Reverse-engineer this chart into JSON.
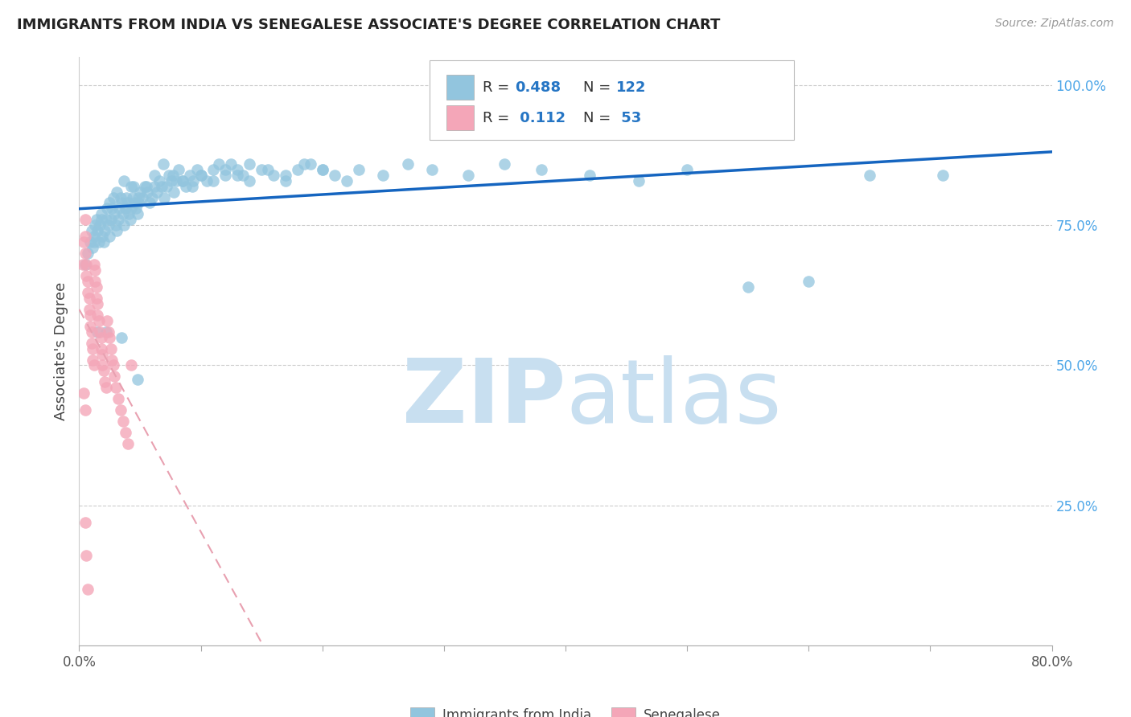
{
  "title": "IMMIGRANTS FROM INDIA VS SENEGALESE ASSOCIATE'S DEGREE CORRELATION CHART",
  "source": "Source: ZipAtlas.com",
  "ylabel": "Associate's Degree",
  "legend_label1": "Immigrants from India",
  "legend_label2": "Senegalese",
  "color_blue": "#92c5de",
  "color_pink": "#f4a6b8",
  "trendline_blue": "#1565C0",
  "trendline_pink": "#e8a0b0",
  "watermark_zip": "ZIP",
  "watermark_atlas": "atlas",
  "watermark_color_zip": "#c8dff0",
  "watermark_color_atlas": "#c8dff0",
  "xlim": [
    0.0,
    0.8
  ],
  "ylim": [
    0.0,
    1.05
  ],
  "figsize": [
    14.06,
    8.92
  ],
  "dpi": 100,
  "blue_x": [
    0.005,
    0.007,
    0.009,
    0.01,
    0.011,
    0.012,
    0.013,
    0.014,
    0.015,
    0.016,
    0.017,
    0.018,
    0.019,
    0.02,
    0.021,
    0.022,
    0.023,
    0.024,
    0.025,
    0.026,
    0.027,
    0.028,
    0.029,
    0.03,
    0.031,
    0.032,
    0.033,
    0.034,
    0.035,
    0.036,
    0.037,
    0.038,
    0.039,
    0.04,
    0.041,
    0.042,
    0.043,
    0.044,
    0.045,
    0.046,
    0.047,
    0.048,
    0.049,
    0.05,
    0.052,
    0.054,
    0.056,
    0.058,
    0.06,
    0.062,
    0.064,
    0.066,
    0.068,
    0.07,
    0.072,
    0.074,
    0.076,
    0.078,
    0.08,
    0.082,
    0.085,
    0.088,
    0.091,
    0.094,
    0.097,
    0.1,
    0.105,
    0.11,
    0.115,
    0.12,
    0.125,
    0.13,
    0.135,
    0.14,
    0.15,
    0.16,
    0.17,
    0.18,
    0.19,
    0.2,
    0.21,
    0.22,
    0.23,
    0.25,
    0.27,
    0.29,
    0.32,
    0.35,
    0.38,
    0.42,
    0.46,
    0.5,
    0.55,
    0.6,
    0.65,
    0.71,
    0.012,
    0.018,
    0.025,
    0.031,
    0.037,
    0.043,
    0.049,
    0.055,
    0.062,
    0.069,
    0.077,
    0.085,
    0.093,
    0.1,
    0.11,
    0.12,
    0.13,
    0.14,
    0.155,
    0.17,
    0.185,
    0.2,
    0.015,
    0.022,
    0.035,
    0.048
  ],
  "blue_y": [
    0.68,
    0.7,
    0.72,
    0.74,
    0.71,
    0.73,
    0.75,
    0.76,
    0.74,
    0.72,
    0.75,
    0.77,
    0.73,
    0.72,
    0.74,
    0.76,
    0.78,
    0.75,
    0.73,
    0.76,
    0.78,
    0.8,
    0.77,
    0.75,
    0.74,
    0.76,
    0.78,
    0.8,
    0.79,
    0.77,
    0.75,
    0.78,
    0.8,
    0.79,
    0.77,
    0.76,
    0.78,
    0.8,
    0.82,
    0.79,
    0.78,
    0.77,
    0.79,
    0.81,
    0.8,
    0.82,
    0.81,
    0.79,
    0.8,
    0.82,
    0.81,
    0.83,
    0.82,
    0.8,
    0.82,
    0.84,
    0.83,
    0.81,
    0.83,
    0.85,
    0.83,
    0.82,
    0.84,
    0.83,
    0.85,
    0.84,
    0.83,
    0.85,
    0.86,
    0.84,
    0.86,
    0.85,
    0.84,
    0.86,
    0.85,
    0.84,
    0.83,
    0.85,
    0.86,
    0.85,
    0.84,
    0.83,
    0.85,
    0.84,
    0.86,
    0.85,
    0.84,
    0.86,
    0.85,
    0.84,
    0.83,
    0.85,
    0.64,
    0.65,
    0.84,
    0.84,
    0.72,
    0.76,
    0.79,
    0.81,
    0.83,
    0.82,
    0.8,
    0.82,
    0.84,
    0.86,
    0.84,
    0.83,
    0.82,
    0.84,
    0.83,
    0.85,
    0.84,
    0.83,
    0.85,
    0.84,
    0.86,
    0.85,
    0.56,
    0.56,
    0.55,
    0.475
  ],
  "pink_x": [
    0.003,
    0.004,
    0.005,
    0.005,
    0.005,
    0.006,
    0.006,
    0.007,
    0.007,
    0.008,
    0.008,
    0.009,
    0.009,
    0.01,
    0.01,
    0.011,
    0.011,
    0.012,
    0.012,
    0.013,
    0.013,
    0.014,
    0.014,
    0.015,
    0.015,
    0.016,
    0.017,
    0.018,
    0.018,
    0.019,
    0.019,
    0.02,
    0.021,
    0.022,
    0.023,
    0.024,
    0.025,
    0.026,
    0.027,
    0.028,
    0.029,
    0.03,
    0.032,
    0.034,
    0.036,
    0.038,
    0.04,
    0.043,
    0.005,
    0.006,
    0.007,
    0.004,
    0.005
  ],
  "pink_y": [
    0.68,
    0.72,
    0.76,
    0.73,
    0.7,
    0.68,
    0.66,
    0.65,
    0.63,
    0.62,
    0.6,
    0.59,
    0.57,
    0.56,
    0.54,
    0.53,
    0.51,
    0.5,
    0.68,
    0.67,
    0.65,
    0.64,
    0.62,
    0.61,
    0.59,
    0.58,
    0.56,
    0.55,
    0.53,
    0.52,
    0.5,
    0.49,
    0.47,
    0.46,
    0.58,
    0.56,
    0.55,
    0.53,
    0.51,
    0.5,
    0.48,
    0.46,
    0.44,
    0.42,
    0.4,
    0.38,
    0.36,
    0.5,
    0.22,
    0.16,
    0.1,
    0.45,
    0.42
  ]
}
